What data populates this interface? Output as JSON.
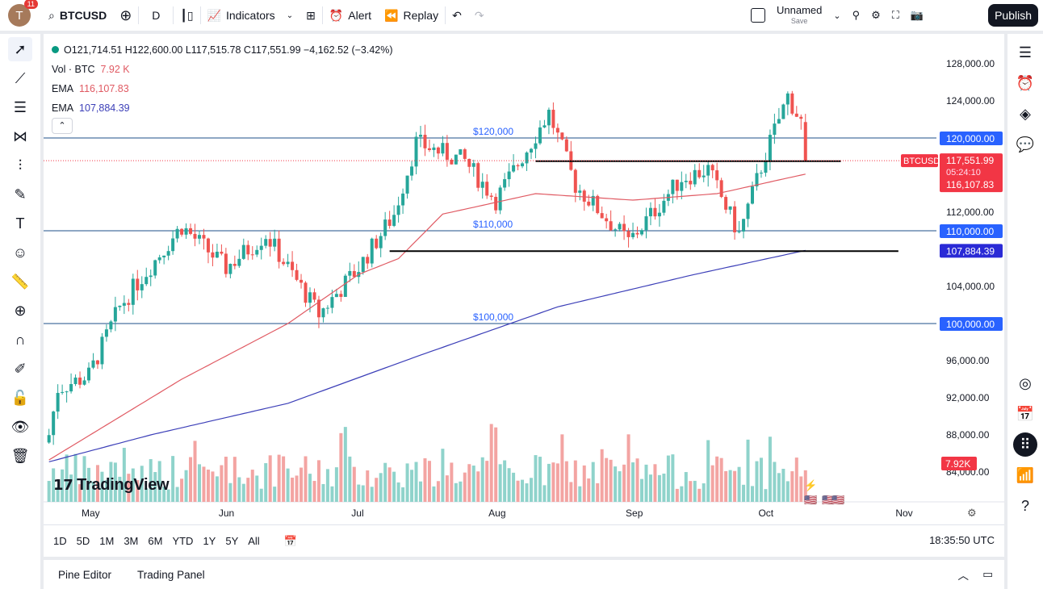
{
  "header": {
    "avatar_letter": "T",
    "notifications": "11",
    "symbol": "BTCUSD",
    "interval": "D",
    "indicators": "Indicators",
    "alert": "Alert",
    "replay": "Replay",
    "layout_name": "Unnamed",
    "layout_save": "Save",
    "publish": "Publish"
  },
  "legend": {
    "ohlc": "O121,714.51 H122,600.00 L117,515.78 C117,551.99 −4,162.52 (−3.42%)",
    "vol_label": "Vol · BTC",
    "vol_value": "7.92 K",
    "ema1_label": "EMA",
    "ema1_value": "116,107.83",
    "ema2_label": "EMA",
    "ema2_value": "107,884.39",
    "collapse": "⌃"
  },
  "colors": {
    "up": "#26a69a",
    "down": "#ef5350",
    "ema_fast": "#e05a63",
    "ema_slow": "#3c3fb8",
    "level_line": "#2962ff",
    "price_tag": "#f23645"
  },
  "chart_data": {
    "type": "candlestick",
    "symbol": "BTCUSD",
    "interval": "1D",
    "ylim": [
      82000,
      129000
    ],
    "y_ticks": [
      "128,000.00",
      "124,000.00",
      "112,000.00",
      "104,000.00",
      "96,000.00",
      "92,000.00",
      "88,000.00",
      "84,000.00"
    ],
    "x_ticks": [
      "May",
      "Jun",
      "Jul",
      "Aug",
      "Sep",
      "Oct",
      "Nov"
    ],
    "close_path": [
      [
        "2025-04-22",
        88000
      ],
      [
        "2025-04-24",
        93000
      ],
      [
        "2025-05-01",
        94400
      ],
      [
        "2025-05-08",
        101800
      ],
      [
        "2025-05-12",
        104400
      ],
      [
        "2025-05-22",
        110500
      ],
      [
        "2025-06-01",
        106000
      ],
      [
        "2025-06-10",
        109600
      ],
      [
        "2025-06-22",
        101000
      ],
      [
        "2025-07-01",
        106000
      ],
      [
        "2025-07-09",
        111800
      ],
      [
        "2025-07-14",
        119500
      ],
      [
        "2025-07-25",
        117500
      ],
      [
        "2025-08-01",
        113300
      ],
      [
        "2025-08-13",
        122700
      ],
      [
        "2025-08-19",
        114900
      ],
      [
        "2025-08-31",
        108800
      ],
      [
        "2025-09-12",
        115700
      ],
      [
        "2025-09-18",
        116600
      ],
      [
        "2025-09-25",
        109600
      ],
      [
        "2025-10-01",
        118300
      ],
      [
        "2025-10-06",
        124500
      ],
      [
        "2025-10-09",
        121700
      ],
      [
        "2025-10-10",
        117551.99
      ]
    ],
    "last_candle": {
      "open": 121714.51,
      "high": 122600.0,
      "low": 117515.78,
      "close": 117551.99
    },
    "ema_fast": [
      [
        "2025-04-22",
        85300
      ],
      [
        "2025-05-22",
        94000
      ],
      [
        "2025-06-15",
        100000
      ],
      [
        "2025-07-01",
        105300
      ],
      [
        "2025-07-10",
        107000
      ],
      [
        "2025-07-20",
        111800
      ],
      [
        "2025-08-10",
        114000
      ],
      [
        "2025-09-01",
        113300
      ],
      [
        "2025-09-20",
        114000
      ],
      [
        "2025-10-10",
        116107.83
      ]
    ],
    "ema_slow": [
      [
        "2025-04-22",
        85100
      ],
      [
        "2025-05-15",
        88000
      ],
      [
        "2025-06-15",
        91400
      ],
      [
        "2025-07-15",
        96600
      ],
      [
        "2025-08-15",
        101800
      ],
      [
        "2025-09-15",
        105300
      ],
      [
        "2025-10-10",
        107884.39
      ]
    ],
    "levels": [
      {
        "price": 120000,
        "label": "$120,000",
        "axis": "120,000.00"
      },
      {
        "price": 110000,
        "label": "$110,000",
        "axis": "110,000.00"
      },
      {
        "price": 100000,
        "label": "$100,000",
        "axis": "100,000.00"
      }
    ],
    "trendlines": [
      {
        "from": [
          "2025-08-10",
          117500
        ],
        "to": [
          "2025-10-18",
          117500
        ]
      },
      {
        "from": [
          "2025-07-08",
          107800
        ],
        "to": [
          "2025-10-31",
          107800
        ]
      }
    ],
    "price_tag": {
      "symbol": "BTCUSD",
      "price": "117,551.99",
      "countdown": "05:24:10"
    },
    "ema_fast_tag": "116,107.83",
    "ema_slow_tag": "107,884.39",
    "volume_tag": "7.92K"
  },
  "watermark": "TradingView",
  "ranges": [
    "1D",
    "5D",
    "1M",
    "3M",
    "6M",
    "YTD",
    "1Y",
    "5Y",
    "All"
  ],
  "clock": "18:35:50 UTC",
  "bottom": {
    "pine": "Pine Editor",
    "trading": "Trading Panel"
  }
}
